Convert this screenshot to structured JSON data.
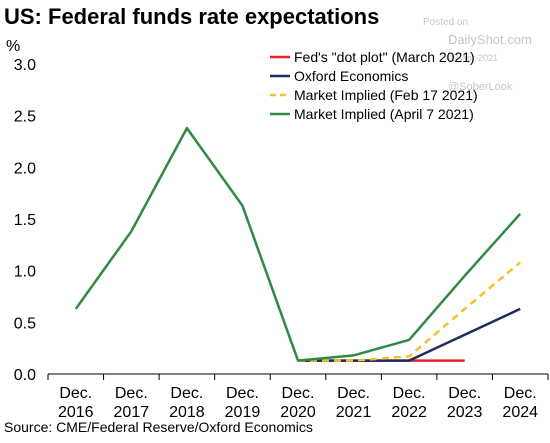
{
  "title": "US: Federal funds rate expectations",
  "source": "Source: CME/Federal Reserve/Oxford Economics",
  "watermark": {
    "posted_on": "Posted on",
    "site": "DailyShot.com",
    "date": "09-Apr-2021",
    "handle": "@SoberLook"
  },
  "chart_data": {
    "type": "line",
    "ylabel": "%",
    "xlabel": "",
    "ylim": [
      0,
      3.0
    ],
    "yticks": [
      "0.0",
      "0.5",
      "1.0",
      "1.5",
      "2.0",
      "2.5",
      "3.0"
    ],
    "categories": [
      [
        "Dec.",
        "2016"
      ],
      [
        "Dec.",
        "2017"
      ],
      [
        "Dec.",
        "2018"
      ],
      [
        "Dec.",
        "2019"
      ],
      [
        "Dec.",
        "2020"
      ],
      [
        "Dec.",
        "2021"
      ],
      [
        "Dec.",
        "2022"
      ],
      [
        "Dec.",
        "2023"
      ],
      [
        "Dec.",
        "2024"
      ]
    ],
    "legend_position": "top-right",
    "series": [
      {
        "name": "Fed's \"dot plot\" (March 2021)",
        "color": "#e8202a",
        "dash": false,
        "values": [
          null,
          null,
          null,
          null,
          0.13,
          0.13,
          0.13,
          0.13,
          null
        ]
      },
      {
        "name": "Oxford Economics",
        "color": "#1f2d5a",
        "dash": false,
        "values": [
          null,
          null,
          null,
          null,
          0.13,
          0.13,
          0.13,
          0.38,
          0.63
        ]
      },
      {
        "name": "Market Implied (Feb 17 2021)",
        "color": "#f2c12e",
        "dash": true,
        "values": [
          null,
          null,
          null,
          null,
          0.13,
          0.13,
          0.17,
          0.63,
          1.08
        ]
      },
      {
        "name": "Market Implied (April 7 2021)",
        "color": "#2f8a45",
        "dash": false,
        "values": [
          0.63,
          1.38,
          2.38,
          1.63,
          0.13,
          0.18,
          0.33,
          0.95,
          1.55
        ]
      }
    ]
  }
}
